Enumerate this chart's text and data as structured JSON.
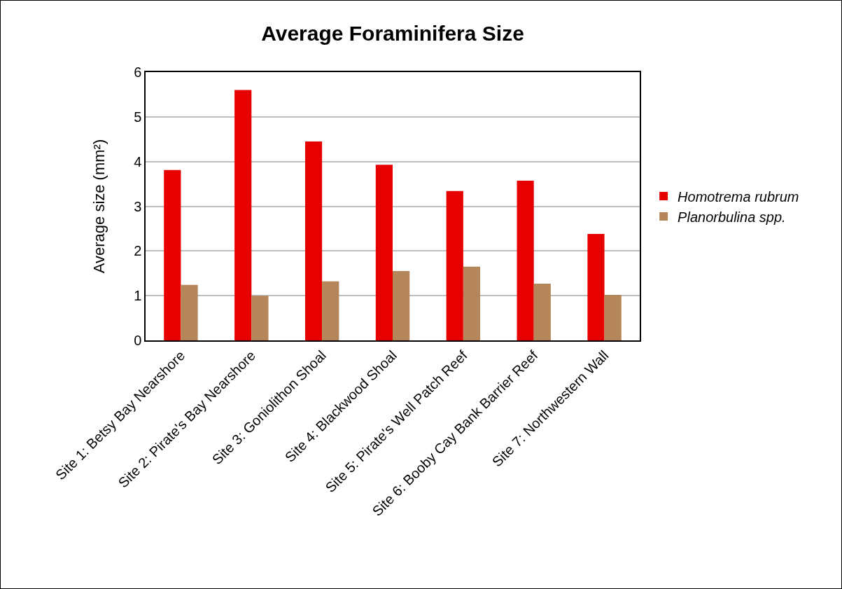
{
  "chart_data": {
    "type": "bar",
    "title": "Average Foraminifera Size",
    "ylabel": "Average size (mm²)",
    "categories": [
      "Site 1: Betsy Bay Nearshore",
      "Site 2: Pirate's Bay Nearshore",
      "Site 3: Goniolithon Shoal",
      "Site 4: Blackwood Shoal",
      "Site 5: Pirate's Well Patch Reef",
      "Site 6: Booby Cay Bank Barrier Reef",
      "Site 7: Northwestern Wall"
    ],
    "series": [
      {
        "name": "Homotrema rubrum",
        "color": "#e60000",
        "values": [
          3.81,
          5.6,
          4.45,
          3.93,
          3.34,
          3.57,
          2.38
        ]
      },
      {
        "name": "Planorbulina spp.",
        "color": "#b5865a",
        "values": [
          1.24,
          1.0,
          1.32,
          1.55,
          1.65,
          1.27,
          1.02
        ]
      }
    ],
    "ylim": [
      0,
      6
    ],
    "yticks": [
      0,
      1,
      2,
      3,
      4,
      5,
      6
    ],
    "grid": "y",
    "legend": "right"
  }
}
